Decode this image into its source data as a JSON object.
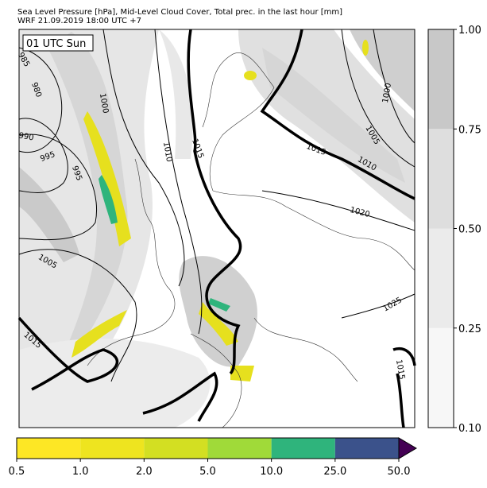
{
  "title": [
    "Sea Level Pressure [hPa], Mid-Level Cloud Cover, Total prec. in the last hour [mm]",
    "WRF 21.09.2019 18:00 UTC +7"
  ],
  "time_label": "01 UTC Sun",
  "isobar_labels": [
    985,
    980,
    1000,
    990,
    995,
    995,
    1010,
    1015,
    1005,
    1015,
    1015,
    1010,
    1020,
    1000,
    1005,
    1025,
    1015
  ],
  "cloud_colorbar": {
    "boundaries": [
      {
        "value": 0.1,
        "label": "0.10"
      },
      0.25,
      {
        "value": 0.5,
        "label": "0.50"
      },
      0.75,
      {
        "value": 1.0,
        "label": "1.00"
      }
    ],
    "colors": [
      "#f7f7f7",
      "#ebebeb",
      "#dedede",
      "#c8c8c8"
    ]
  },
  "precip_colorbar": {
    "boundaries": [
      0.5,
      {
        "value": 1.0,
        "label": "1.0"
      },
      {
        "value": 2.0,
        "label": "2.0"
      },
      {
        "value": 5.0,
        "label": "5.0"
      },
      {
        "value": 10.0,
        "label": "10.0"
      },
      {
        "value": 25.0,
        "label": "25.0"
      },
      {
        "value": 50.0,
        "label": "50.0"
      }
    ],
    "colors": [
      "#fde725",
      "#eee41f",
      "#d3df22",
      "#a0da39",
      "#2fb47c",
      "#3b528b"
    ],
    "extend_color": "#440154"
  }
}
